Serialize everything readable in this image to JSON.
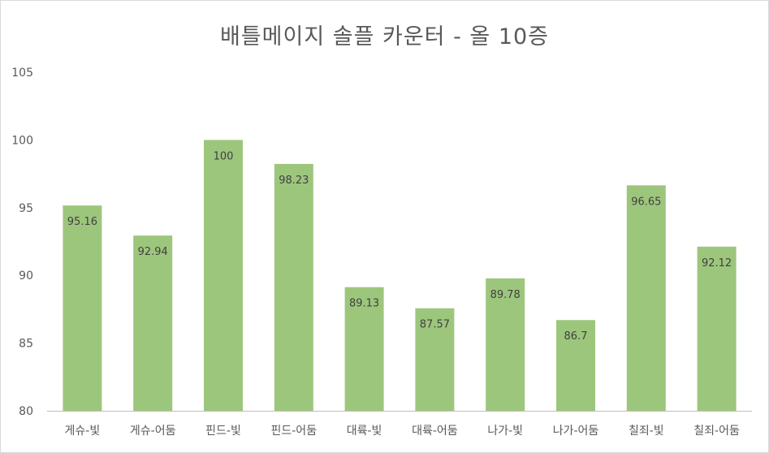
{
  "chart_data": {
    "type": "bar",
    "title": "배틀메이지 솔플 카운터 - 올 10증",
    "categories": [
      "게슈-빛",
      "게슈-어둠",
      "핀드-빛",
      "핀드-어둠",
      "대륙-빛",
      "대륙-어둠",
      "나가-빛",
      "나가-어둠",
      "칠죄-빛",
      "칠죄-어둠"
    ],
    "values": [
      95.16,
      92.94,
      100,
      98.23,
      89.13,
      87.57,
      89.78,
      86.7,
      96.65,
      92.12
    ],
    "data_labels": [
      "95.16",
      "92.94",
      "100",
      "98.23",
      "89.13",
      "87.57",
      "89.78",
      "86.7",
      "96.65",
      "92.12"
    ],
    "ylim": [
      80,
      105
    ],
    "yticks": [
      "80",
      "85",
      "90",
      "95",
      "100",
      "105"
    ],
    "xlabel": "",
    "ylabel": "",
    "grid": false,
    "legend": "none",
    "bar_color": "#9dc67d",
    "axis_color": "#bfbfbf"
  }
}
